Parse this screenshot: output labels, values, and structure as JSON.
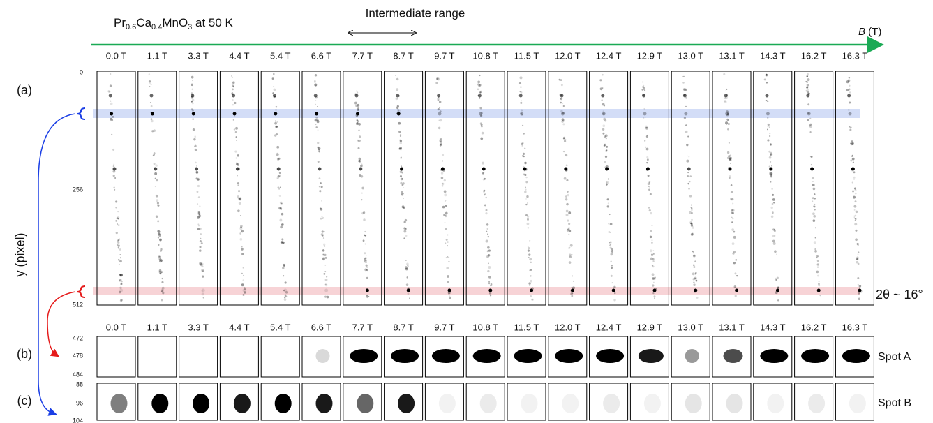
{
  "title": {
    "parts": [
      "Pr",
      "0.6",
      "Ca",
      "0.4",
      "MnO",
      "3",
      " at 50 K"
    ]
  },
  "intermediate": "Intermediate range",
  "axis": {
    "symbol": "B",
    "unit": " (T)"
  },
  "fields": [
    "0.0 T",
    "1.1 T",
    "3.3 T",
    "4.4 T",
    "5.4 T",
    "6.6 T",
    "7.7 T",
    "8.7 T",
    "9.7 T",
    "10.8 T",
    "11.5 T",
    "12.0 T",
    "12.4 T",
    "12.9 T",
    "13.0 T",
    "13.1 T",
    "14.3 T",
    "16.2 T",
    "16.3 T"
  ],
  "panels": {
    "a": {
      "label": "(a)",
      "ticks": [
        "0",
        "256",
        "512"
      ]
    },
    "b": {
      "label": "(b)",
      "ticks": [
        "472",
        "478",
        "484"
      ],
      "name": "Spot A"
    },
    "c": {
      "label": "(c)",
      "ticks": [
        "88",
        "96",
        "104"
      ],
      "name": "Spot B"
    }
  },
  "y_label": "y (pixel)",
  "angle": "2θ ~ 16°"
}
